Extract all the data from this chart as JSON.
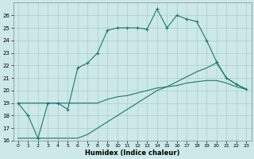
{
  "xlabel": "Humidex (Indice chaleur)",
  "background_color": "#cce8e8",
  "grid_color": "#aacccc",
  "line_color": "#1a7a6e",
  "xlim": [
    -0.5,
    23.5
  ],
  "ylim": [
    16,
    27
  ],
  "xticks": [
    0,
    1,
    2,
    3,
    4,
    5,
    6,
    7,
    8,
    9,
    10,
    11,
    12,
    13,
    14,
    15,
    16,
    17,
    18,
    19,
    20,
    21,
    22,
    23
  ],
  "yticks": [
    16,
    17,
    18,
    19,
    20,
    21,
    22,
    23,
    24,
    25,
    26
  ],
  "series1": [
    19,
    18,
    16.2,
    19,
    19,
    18.5,
    21.8,
    22.2,
    23,
    24.8,
    25,
    25,
    25,
    24.9,
    26.5,
    25,
    26,
    25.7,
    25.5,
    24,
    22.3,
    21,
    20.5,
    20.1
  ],
  "series2": [
    19,
    19,
    19,
    19,
    19,
    19,
    19,
    19,
    19,
    19.3,
    19.5,
    19.6,
    19.8,
    20.0,
    20.2,
    20.3,
    20.4,
    20.6,
    20.7,
    20.8,
    20.8,
    20.6,
    20.3,
    20.1
  ],
  "series3": [
    16.2,
    16.2,
    16.2,
    16.2,
    16.2,
    16.2,
    16.2,
    16.5,
    17.0,
    17.5,
    18.0,
    18.5,
    19.0,
    19.5,
    20.0,
    20.3,
    20.7,
    21.1,
    21.5,
    21.8,
    22.2,
    21.0,
    20.5,
    20.1
  ]
}
